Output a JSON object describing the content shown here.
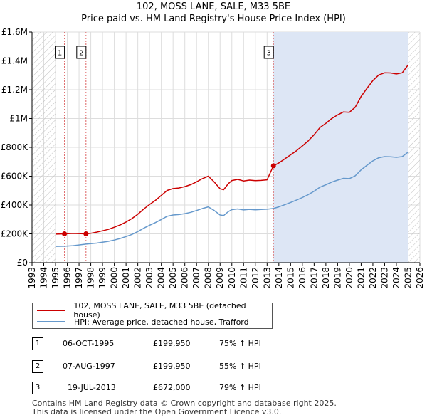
{
  "title_line1": "102, MOSS LANE, SALE, M33 5BE",
  "title_line2": "Price paid vs. HM Land Registry's House Price Index (HPI)",
  "chart_data": {
    "type": "line",
    "title": "102, MOSS LANE, SALE, M33 5BE — Price paid vs. HM Land Registry's House Price Index (HPI)",
    "xlim": [
      1993,
      2026
    ],
    "ylim": [
      0,
      1600000
    ],
    "x_ticks": [
      1993,
      1994,
      1995,
      1996,
      1997,
      1998,
      1999,
      2000,
      2001,
      2002,
      2003,
      2004,
      2005,
      2006,
      2007,
      2008,
      2009,
      2010,
      2011,
      2012,
      2013,
      2014,
      2015,
      2016,
      2017,
      2018,
      2019,
      2020,
      2021,
      2022,
      2023,
      2024,
      2025,
      2026
    ],
    "y_ticks": [
      0,
      200000,
      400000,
      600000,
      800000,
      1000000,
      1200000,
      1400000,
      1600000
    ],
    "y_tick_labels": [
      "£0",
      "£200K",
      "£400K",
      "£600K",
      "£800K",
      "£1M",
      "£1.2M",
      "£1.4M",
      "£1.6M"
    ],
    "data_range": [
      1995.0,
      2025.0
    ],
    "series": [
      {
        "name": "102, MOSS LANE, SALE, M33 5BE (detached house)",
        "color": "#cc0000",
        "x": [
          1995.0,
          1995.76,
          1996.5,
          1997.59,
          1998.0,
          1998.5,
          1999.0,
          1999.5,
          2000.0,
          2000.5,
          2001.0,
          2001.5,
          2002.0,
          2002.5,
          2003.0,
          2003.5,
          2004.0,
          2004.5,
          2005.0,
          2005.5,
          2006.0,
          2006.5,
          2007.0,
          2007.5,
          2008.0,
          2008.5,
          2009.0,
          2009.3,
          2009.7,
          2010.0,
          2010.5,
          2011.0,
          2011.5,
          2012.0,
          2012.5,
          2013.0,
          2013.54,
          2014.0,
          2014.5,
          2015.0,
          2015.5,
          2016.0,
          2016.5,
          2017.0,
          2017.5,
          2018.0,
          2018.5,
          2019.0,
          2019.5,
          2020.0,
          2020.5,
          2021.0,
          2021.5,
          2022.0,
          2022.5,
          2023.0,
          2023.5,
          2024.0,
          2024.5,
          2025.0
        ],
        "y": [
          198000,
          199950,
          203000,
          199950,
          204000,
          212000,
          221000,
          231000,
          246000,
          262000,
          282000,
          306000,
          336000,
          372000,
          404000,
          432000,
          467000,
          501000,
          514000,
          518000,
          528000,
          541000,
          561000,
          583000,
          600000,
          560000,
          513000,
          506000,
          548000,
          570000,
          578000,
          567000,
          573000,
          569000,
          571000,
          575000,
          672000,
          692000,
          720000,
          748000,
          777000,
          810000,
          845000,
          888000,
          938000,
          967000,
          1000000,
          1025000,
          1046000,
          1043000,
          1079000,
          1153000,
          1210000,
          1263000,
          1302000,
          1317000,
          1316000,
          1309000,
          1317000,
          1372000
        ]
      },
      {
        "name": "HPI: Average price, detached house, Trafford",
        "color": "#6699cc",
        "x": [
          1995.0,
          1995.76,
          1996.5,
          1997.59,
          1998.0,
          1998.5,
          1999.0,
          1999.5,
          2000.0,
          2000.5,
          2001.0,
          2001.5,
          2002.0,
          2002.5,
          2003.0,
          2003.5,
          2004.0,
          2004.5,
          2005.0,
          2005.5,
          2006.0,
          2006.5,
          2007.0,
          2007.5,
          2008.0,
          2008.5,
          2009.0,
          2009.3,
          2009.7,
          2010.0,
          2010.5,
          2011.0,
          2011.5,
          2012.0,
          2012.5,
          2013.0,
          2013.54,
          2014.0,
          2014.5,
          2015.0,
          2015.5,
          2016.0,
          2016.5,
          2017.0,
          2017.5,
          2018.0,
          2018.5,
          2019.0,
          2019.5,
          2020.0,
          2020.5,
          2021.0,
          2021.5,
          2022.0,
          2022.5,
          2023.0,
          2023.5,
          2024.0,
          2024.5,
          2025.0
        ],
        "y": [
          113000,
          114000,
          118000,
          129000,
          132000,
          136000,
          142000,
          148000,
          157000,
          168000,
          181000,
          196000,
          216000,
          239000,
          260000,
          278000,
          300000,
          322000,
          331000,
          334000,
          340000,
          349000,
          362000,
          376000,
          387000,
          362000,
          331000,
          327000,
          354000,
          368000,
          373000,
          366000,
          370000,
          367000,
          369000,
          371000,
          376000,
          387000,
          402000,
          418000,
          434000,
          452000,
          472000,
          496000,
          524000,
          540000,
          559000,
          573000,
          585000,
          583000,
          603000,
          644000,
          676000,
          706000,
          728000,
          736000,
          735000,
          731000,
          736000,
          767000
        ]
      }
    ],
    "transactions": [
      {
        "id": "1",
        "x": 1995.76,
        "price": 199950,
        "date": "06-OCT-1995",
        "price_label": "£199,950",
        "hpi": "75% ↑ HPI"
      },
      {
        "id": "2",
        "x": 1997.59,
        "price": 199950,
        "date": "07-AUG-1997",
        "price_label": "£199,950",
        "hpi": "55% ↑ HPI"
      },
      {
        "id": "3",
        "x": 2013.54,
        "price": 672000,
        "date": "19-JUL-2013",
        "price_label": "£672,000",
        "hpi": "79% ↑ HPI"
      }
    ],
    "colors": {
      "price": "#cc0000",
      "hpi": "#6699cc",
      "shade": "#dde6f5",
      "hatch": "#c0c0c0",
      "grid": "#dddddd",
      "marker_line": "#dd6666"
    }
  },
  "legend": {
    "price_label": "102, MOSS LANE, SALE, M33 5BE (detached house)",
    "hpi_label": "HPI: Average price, detached house, Trafford"
  },
  "footer": {
    "line1": "Contains HM Land Registry data © Crown copyright and database right 2025.",
    "line2": "This data is licensed under the Open Government Licence v3.0."
  }
}
